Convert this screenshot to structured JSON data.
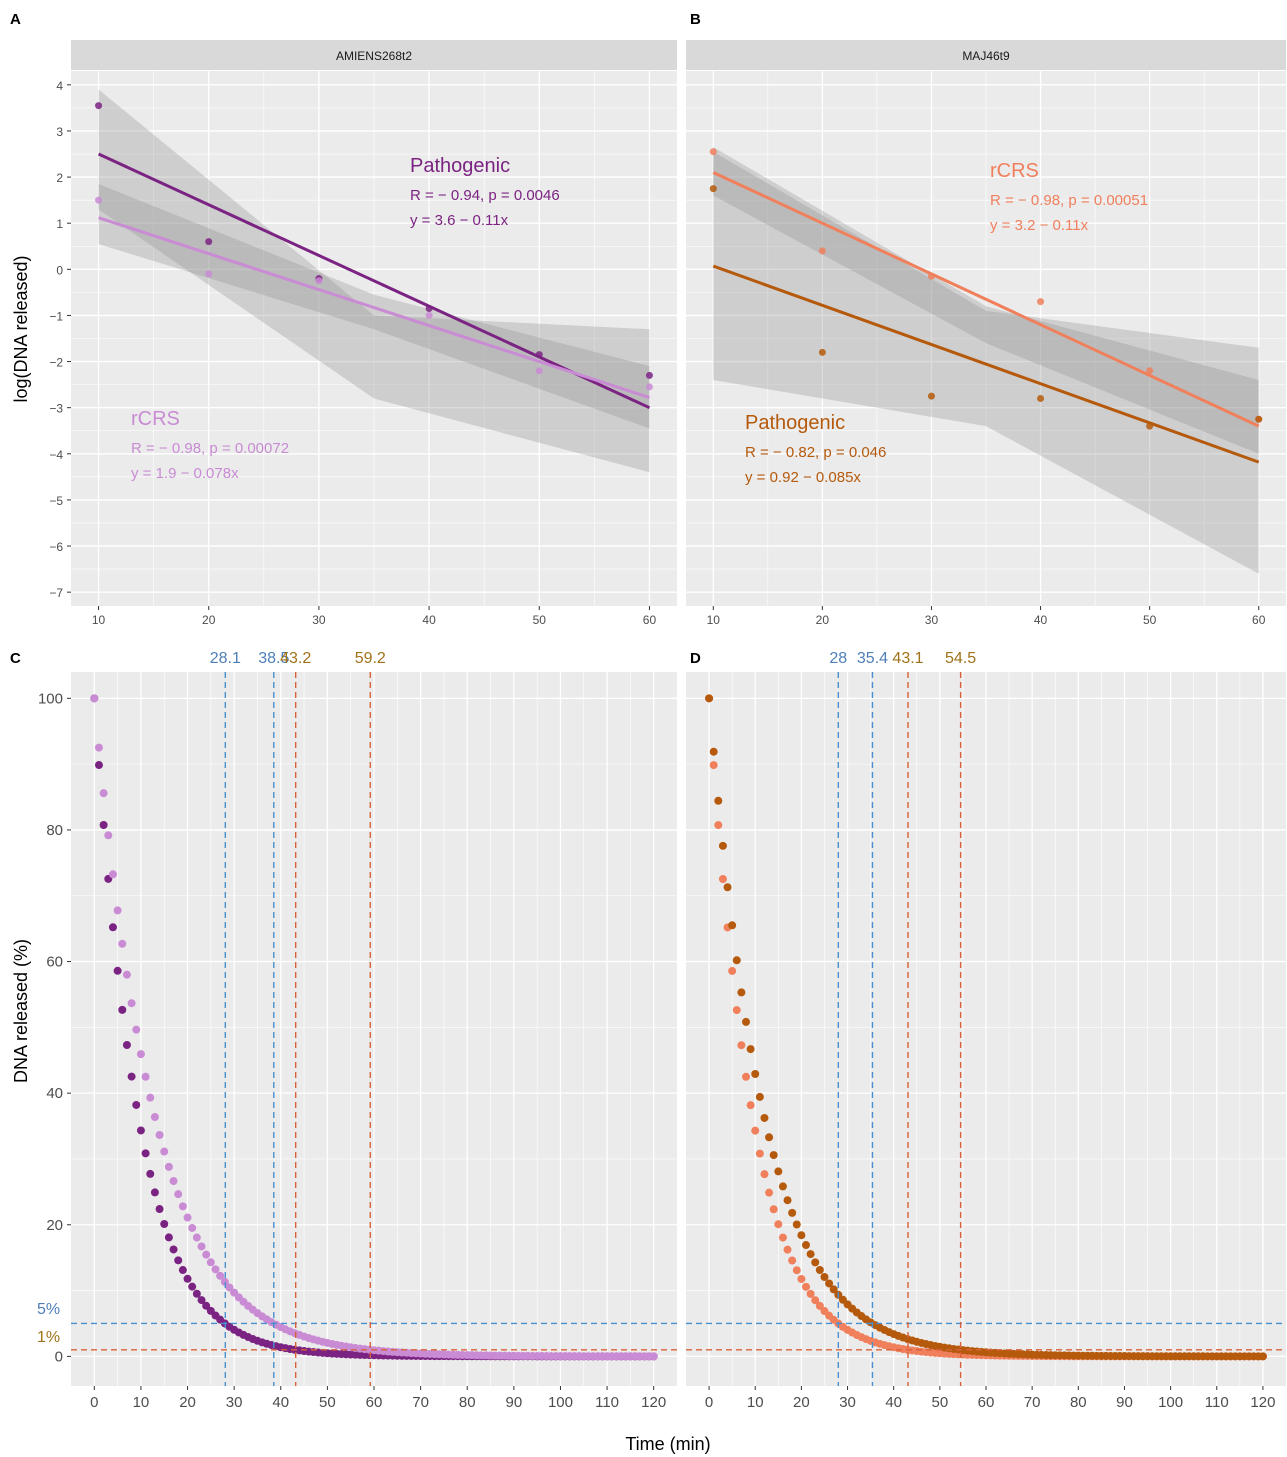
{
  "colors": {
    "panel_bg": "#ebebeb",
    "grid": "#ffffff",
    "strip_bg": "#d9d9d9",
    "ribbon": "#8c8c8c",
    "pathogenic_A": "#7b2382",
    "rcrs_A": "#c98bd4",
    "rcrs_B": "#f07f5c",
    "pathogenic_B": "#b55a0c",
    "blue_line": "#4a8fcf",
    "red_line": "#d9613a",
    "label_blue": "#4f7fb8",
    "label_gold": "#a07318"
  },
  "panel_letters": [
    "A",
    "B",
    "C",
    "D"
  ],
  "shared_labels": {
    "top_ylabel": "log(DNA released)",
    "bottom_ylabel": "DNA released (%)",
    "bottom_xlabel": "Time (min)",
    "pct5": "5%",
    "pct1": "1%"
  },
  "chart_data": [
    {
      "panel": "A",
      "type": "scatter",
      "facet_title": "AMIENS268t2",
      "xlim": [
        7.5,
        62.5
      ],
      "ylim": [
        -7.3,
        4.3
      ],
      "xticks": [
        10,
        20,
        30,
        40,
        50,
        60
      ],
      "yticks": [
        -7,
        -6,
        -5,
        -4,
        -3,
        -2,
        -1,
        0,
        1,
        2,
        3,
        4
      ],
      "series": [
        {
          "name": "Pathogenic",
          "color": "pathogenic_A",
          "x": [
            10,
            20,
            30,
            40,
            50,
            60
          ],
          "y": [
            3.55,
            0.6,
            -0.2,
            -0.85,
            -1.85,
            -2.3
          ],
          "fit": {
            "intercept": 3.6,
            "slope": -0.11,
            "x_range": [
              10,
              60
            ],
            "ribbon_lower": [
              1.3,
              -2.8,
              -4.4
            ],
            "ribbon_upper": [
              3.9,
              -1.0,
              -1.3
            ]
          },
          "stats_r": "R = − 0.94, p = 0.0046",
          "stats_eq": "y = 3.6 − 0.11x"
        },
        {
          "name": "rCRS",
          "color": "rcrs_A",
          "x": [
            10,
            20,
            30,
            40,
            50,
            60
          ],
          "y": [
            1.5,
            -0.1,
            -0.25,
            -1.0,
            -2.2,
            -2.55
          ],
          "fit": {
            "intercept": 1.9,
            "slope": -0.078,
            "x_range": [
              10,
              60
            ],
            "ribbon_lower": [
              0.55,
              -1.3,
              -3.45
            ],
            "ribbon_upper": [
              1.85,
              -0.55,
              -2.1
            ]
          },
          "stats_r": "R = − 0.98, p = 0.00072",
          "stats_eq": "y = 1.9 − 0.078x"
        }
      ]
    },
    {
      "panel": "B",
      "type": "scatter",
      "facet_title": "MAJ46t9",
      "xlim": [
        7.5,
        62.5
      ],
      "ylim": [
        -7.3,
        4.3
      ],
      "xticks": [
        10,
        20,
        30,
        40,
        50,
        60
      ],
      "series": [
        {
          "name": "rCRS",
          "color": "rcrs_B",
          "x": [
            10,
            20,
            30,
            40,
            50,
            60
          ],
          "y": [
            2.55,
            0.4,
            -0.15,
            -0.7,
            -2.2,
            -3.25
          ],
          "fit": {
            "intercept": 3.2,
            "slope": -0.11,
            "x_range": [
              10,
              60
            ],
            "ribbon_lower": [
              1.6,
              -1.6,
              -4.0
            ],
            "ribbon_upper": [
              2.65,
              -0.8,
              -2.4
            ]
          },
          "stats_r": "R = − 0.98, p = 0.00051",
          "stats_eq": "y = 3.2 − 0.11x"
        },
        {
          "name": "Pathogenic",
          "color": "pathogenic_B",
          "x": [
            10,
            20,
            30,
            40,
            50,
            60
          ],
          "y": [
            1.75,
            -1.8,
            -2.75,
            -2.8,
            -3.4,
            -3.25
          ],
          "fit": {
            "intercept": 0.92,
            "slope": -0.085,
            "x_range": [
              10,
              60
            ],
            "ribbon_lower": [
              -2.4,
              -3.4,
              -6.6
            ],
            "ribbon_upper": [
              2.55,
              -0.9,
              -1.7
            ]
          },
          "stats_r": "R = − 0.82, p = 0.046",
          "stats_eq": "y = 0.92 − 0.085x"
        }
      ]
    },
    {
      "panel": "C",
      "type": "scatter",
      "xlim": [
        -5,
        125
      ],
      "ylim": [
        -4.5,
        104
      ],
      "xticks": [
        0,
        10,
        20,
        30,
        40,
        50,
        60,
        70,
        80,
        90,
        100,
        110,
        120
      ],
      "yticks": [
        0,
        20,
        40,
        60,
        80,
        100
      ],
      "x_step": 1,
      "x_range": [
        0,
        120
      ],
      "series": [
        {
          "name": "Pathogenic",
          "color": "pathogenic_A",
          "model": "100*exp(-0.1069*x)"
        },
        {
          "name": "rCRS",
          "color": "rcrs_A",
          "model": "100*exp(-0.0778*x)"
        }
      ],
      "hlines": [
        {
          "y": 5,
          "color": "blue_line"
        },
        {
          "y": 1,
          "color": "red_line"
        }
      ],
      "vlines": [
        {
          "x": 28.1,
          "label": "28.1",
          "line_color": "blue_line",
          "label_color": "label_blue"
        },
        {
          "x": 38.5,
          "label": "38.5",
          "line_color": "blue_line",
          "label_color": "label_blue"
        },
        {
          "x": 43.2,
          "label": "43.2",
          "line_color": "red_line",
          "label_color": "label_gold"
        },
        {
          "x": 59.2,
          "label": "59.2",
          "line_color": "red_line",
          "label_color": "label_gold"
        }
      ]
    },
    {
      "panel": "D",
      "type": "scatter",
      "xlim": [
        -5,
        125
      ],
      "ylim": [
        -4.5,
        104
      ],
      "xticks": [
        0,
        10,
        20,
        30,
        40,
        50,
        60,
        70,
        80,
        90,
        100,
        110,
        120
      ],
      "x_step": 1,
      "x_range": [
        0,
        120
      ],
      "series": [
        {
          "name": "rCRS",
          "color": "rcrs_B",
          "model": "100*exp(-0.1070*x)"
        },
        {
          "name": "Pathogenic",
          "color": "pathogenic_B",
          "model": "100*exp(-0.0846*x)"
        }
      ],
      "hlines": [
        {
          "y": 5,
          "color": "blue_line"
        },
        {
          "y": 1,
          "color": "red_line"
        }
      ],
      "vlines": [
        {
          "x": 28,
          "label": "28",
          "line_color": "blue_line",
          "label_color": "label_blue"
        },
        {
          "x": 35.4,
          "label": "35.4",
          "line_color": "blue_line",
          "label_color": "label_blue"
        },
        {
          "x": 43.1,
          "label": "43.1",
          "line_color": "red_line",
          "label_color": "label_gold"
        },
        {
          "x": 54.5,
          "label": "54.5",
          "line_color": "red_line",
          "label_color": "label_gold"
        }
      ]
    }
  ]
}
